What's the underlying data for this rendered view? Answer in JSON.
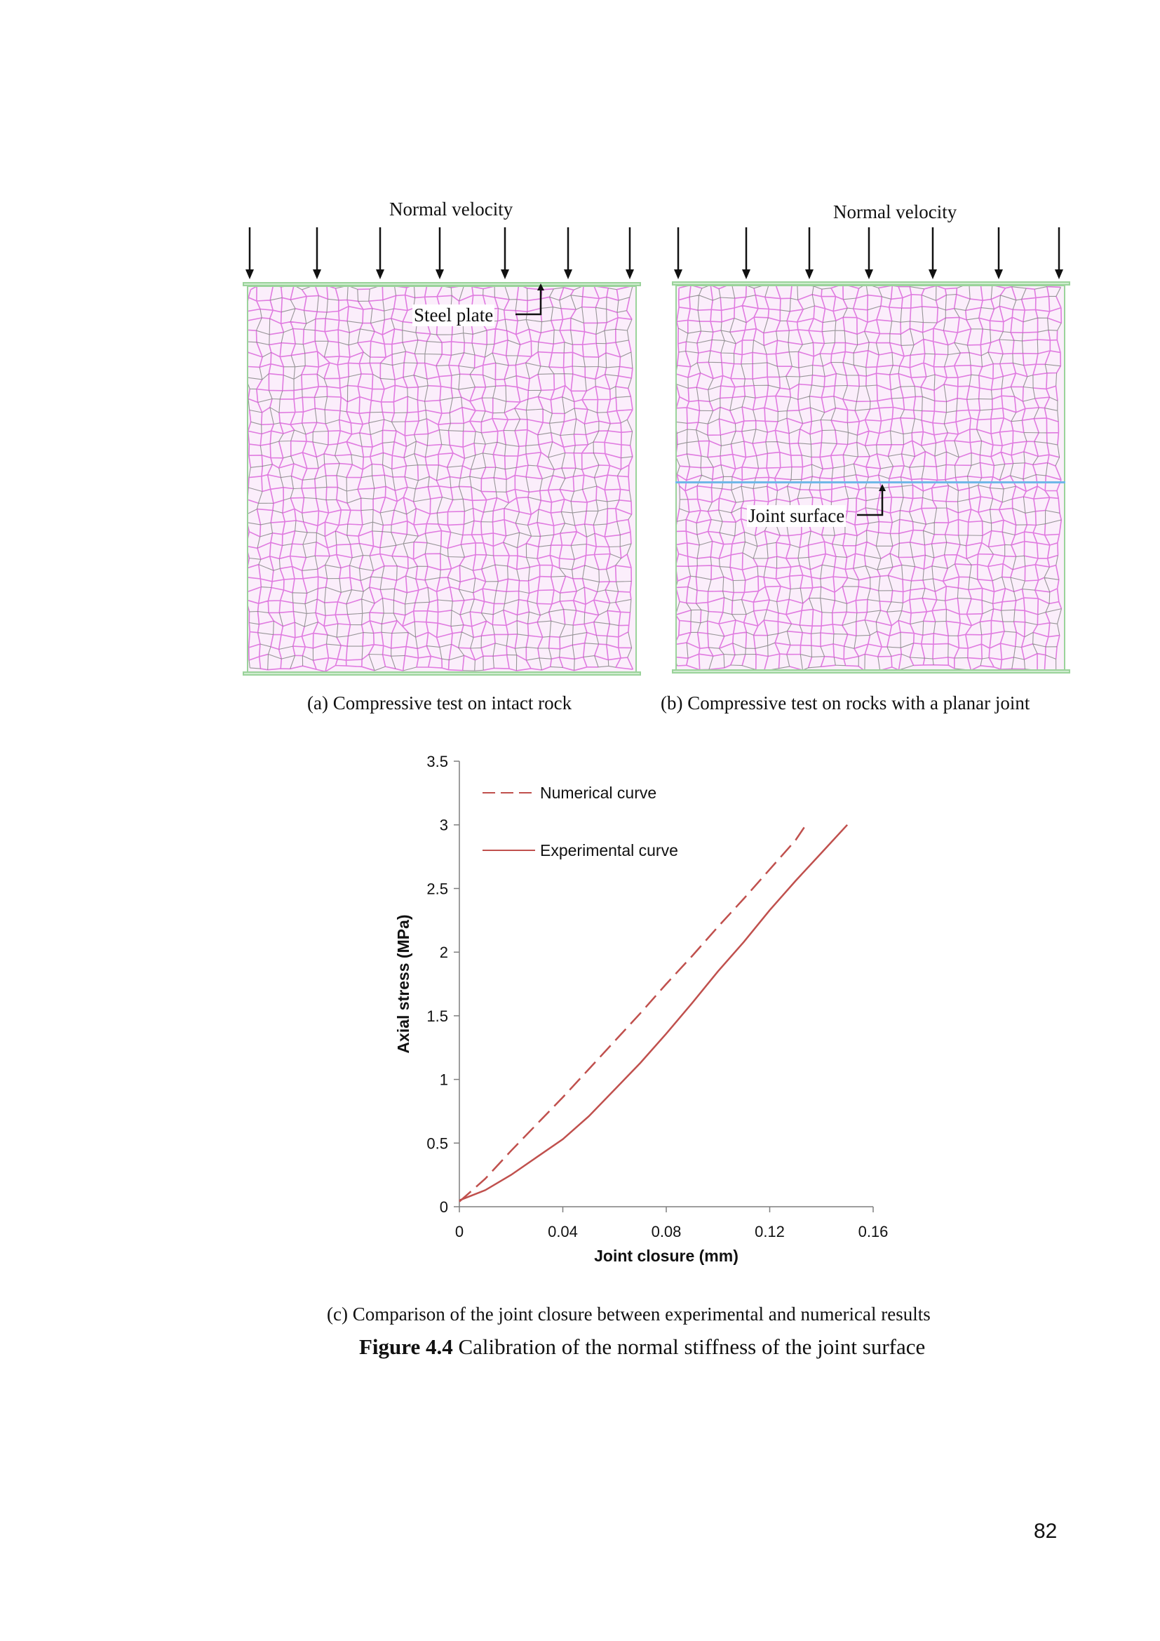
{
  "panel_a": {
    "top_label": "Normal velocity",
    "annotation": "Steel plate",
    "caption": "(a) Compressive test on intact rock"
  },
  "panel_b": {
    "top_label": "Normal velocity",
    "annotation": "Joint surface",
    "caption": "(b) Compressive test on rocks with a planar joint"
  },
  "colors": {
    "particles": "#e07be0",
    "particle_edges": "#777777",
    "plate": "#9bd39b",
    "joint": "#6fb8e8",
    "curve": "#c0504d"
  },
  "chart_data": {
    "type": "line",
    "title": "",
    "xlabel": "Joint closure (mm)",
    "ylabel": "Axial stress (MPa)",
    "xlim": [
      0,
      0.16
    ],
    "ylim": [
      0,
      3.5
    ],
    "xticks": [
      "0",
      "0.04",
      "0.08",
      "0.12",
      "0.16"
    ],
    "yticks": [
      "0",
      "0.5",
      "1",
      "1.5",
      "2",
      "2.5",
      "3",
      "3.5"
    ],
    "legend_position": "top-left",
    "series": [
      {
        "name": "Numerical curve",
        "style": "dashed",
        "x": [
          0,
          0.01,
          0.02,
          0.03,
          0.04,
          0.05,
          0.06,
          0.07,
          0.08,
          0.09,
          0.1,
          0.11,
          0.12,
          0.13,
          0.134
        ],
        "y": [
          0.04,
          0.22,
          0.44,
          0.65,
          0.86,
          1.08,
          1.3,
          1.52,
          1.75,
          1.97,
          2.2,
          2.42,
          2.65,
          2.88,
          3.0
        ]
      },
      {
        "name": "Experimental curve",
        "style": "solid",
        "x": [
          0,
          0.005,
          0.01,
          0.02,
          0.03,
          0.04,
          0.05,
          0.06,
          0.07,
          0.08,
          0.09,
          0.1,
          0.11,
          0.12,
          0.13,
          0.14,
          0.15
        ],
        "y": [
          0.05,
          0.09,
          0.13,
          0.25,
          0.39,
          0.53,
          0.71,
          0.92,
          1.13,
          1.36,
          1.6,
          1.85,
          2.08,
          2.33,
          2.56,
          2.78,
          3.0
        ]
      }
    ]
  },
  "panel_c": {
    "caption": "(c) Comparison of the joint closure between experimental and numerical results"
  },
  "figure": {
    "label": "Figure 4.4",
    "title": " Calibration of the normal stiffness of the joint surface"
  },
  "page_number": "82"
}
